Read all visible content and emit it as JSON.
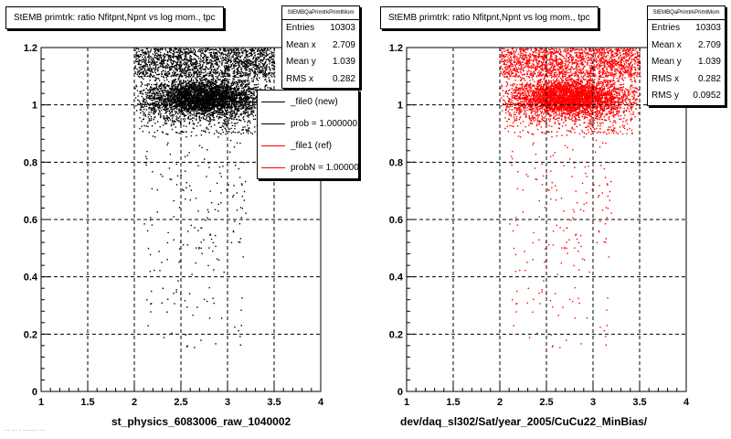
{
  "footer_note": "... ... . ........ ....",
  "chart_data": [
    {
      "type": "scatter",
      "title": "StEMB primtrk: ratio Nfitpnt,Npnt vs log mom., tpc",
      "xlabel": "st_physics_6083006_raw_1040002",
      "ylabel": "",
      "xlim": [
        1,
        4
      ],
      "ylim": [
        0,
        1.2
      ],
      "xticks": [
        "1",
        "1.5",
        "2",
        "2.5",
        "3",
        "3.5",
        "4"
      ],
      "yticks": [
        "0",
        "0.2",
        "0.4",
        "0.6",
        "0.8",
        "1",
        "1.2"
      ],
      "grid": true,
      "color": "#000000",
      "stats": {
        "name": "StEMBQaPrimtrkPrimtMom",
        "rows": [
          {
            "label": "Entries",
            "value": "10303"
          },
          {
            "label": "Mean x",
            "value": "2.709"
          },
          {
            "label": "Mean y",
            "value": "1.039"
          },
          {
            "label": "RMS x",
            "value": "0.282"
          }
        ]
      },
      "legend": [
        {
          "label": "_file0 (new)",
          "color": "#000000"
        },
        {
          "label": "prob = 1.000000",
          "color": "#000000"
        },
        {
          "label": "_file1 (ref)",
          "color": "#ff0000"
        },
        {
          "label": "probN = 1.000000",
          "color": "#ff0000"
        }
      ],
      "entries": 10303,
      "mean_x": 2.709,
      "mean_y": 1.039,
      "rms_x": 0.282,
      "rms_y": 0.0952,
      "core": {
        "x_range": [
          2.15,
          3.35
        ],
        "y_range": [
          0.96,
          1.09
        ]
      },
      "upper_band": {
        "x_range": [
          2.0,
          3.5
        ],
        "y_range": [
          1.1,
          1.2
        ]
      },
      "x_extent": [
        2.0,
        3.5
      ],
      "y_extent": [
        0.15,
        1.2
      ],
      "seed": 11
    },
    {
      "type": "scatter",
      "title": "StEMB primtrk: ratio Nfitpnt,Npnt vs log mom., tpc",
      "xlabel": "dev/daq_sl302/Sat/year_2005/CuCu22_MinBias/",
      "ylabel": "",
      "xlim": [
        1,
        4
      ],
      "ylim": [
        0,
        1.2
      ],
      "xticks": [
        "1",
        "1.5",
        "2",
        "2.5",
        "3",
        "3.5",
        "4"
      ],
      "yticks": [
        "0",
        "0.2",
        "0.4",
        "0.6",
        "0.8",
        "1",
        "1.2"
      ],
      "grid": true,
      "color": "#ff0000",
      "stats": {
        "name": "StEMBQaPrimtrkPrimtMom",
        "rows": [
          {
            "label": "Entries",
            "value": "10303"
          },
          {
            "label": "Mean x",
            "value": "2.709"
          },
          {
            "label": "Mean y",
            "value": "1.039"
          },
          {
            "label": "RMS x",
            "value": "0.282"
          },
          {
            "label": "RMS y",
            "value": "0.0952"
          }
        ]
      },
      "entries": 10303,
      "mean_x": 2.709,
      "mean_y": 1.039,
      "rms_x": 0.282,
      "rms_y": 0.0952,
      "core": {
        "x_range": [
          2.15,
          3.35
        ],
        "y_range": [
          0.96,
          1.09
        ]
      },
      "upper_band": {
        "x_range": [
          2.0,
          3.5
        ],
        "y_range": [
          1.1,
          1.2
        ]
      },
      "x_extent": [
        2.0,
        3.5
      ],
      "y_extent": [
        0.15,
        1.2
      ],
      "seed": 11
    }
  ]
}
